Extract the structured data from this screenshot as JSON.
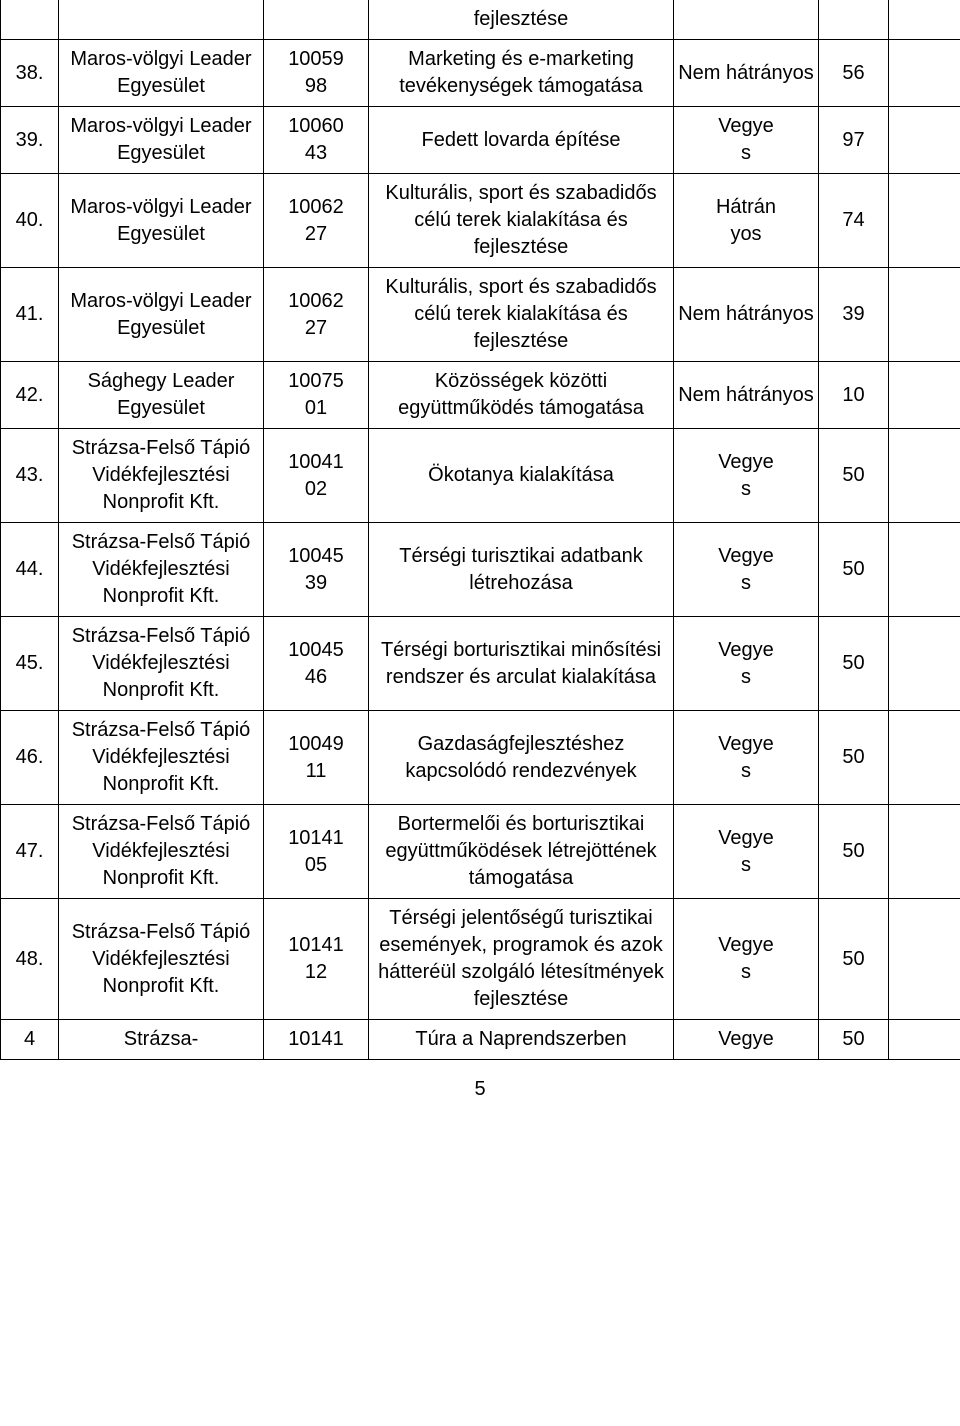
{
  "rows": [
    {
      "num": "",
      "org": "",
      "code": "",
      "desc": "fejlesztése",
      "type": "",
      "score": "",
      "tail": ""
    },
    {
      "num": "38.",
      "org": "Maros-völgyi Leader Egyesület",
      "code": "10059\n98",
      "desc": "Marketing és e-marketing tevékenységek támogatása",
      "type": "Nem hátrányos",
      "score": "56",
      "tail": ""
    },
    {
      "num": "39.",
      "org": "Maros-völgyi Leader Egyesület",
      "code": "10060\n43",
      "desc": "Fedett lovarda építése",
      "type": "Vegye\ns",
      "score": "97",
      "tail": ""
    },
    {
      "num": "40.",
      "org": "Maros-völgyi Leader Egyesület",
      "code": "10062\n27",
      "desc": "Kulturális, sport és szabadidős célú terek kialakítása és fejlesztése",
      "type": "Hátrán\nyos",
      "score": "74",
      "tail": ""
    },
    {
      "num": "41.",
      "org": "Maros-völgyi Leader Egyesület",
      "code": "10062\n27",
      "desc": "Kulturális, sport és szabadidős célú terek kialakítása és fejlesztése",
      "type": "Nem hátrányos",
      "score": "39",
      "tail": ""
    },
    {
      "num": "42.",
      "org": "Sághegy Leader Egyesület",
      "code": "10075\n01",
      "desc": "Közösségek közötti együttműködés támogatása",
      "type": "Nem hátrányos",
      "score": "10",
      "tail": ""
    },
    {
      "num": "43.",
      "org": "Strázsa-Felső Tápió Vidékfejlesztési Nonprofit Kft.",
      "code": "10041\n02",
      "desc": "Ökotanya kialakítása",
      "type": "Vegye\ns",
      "score": "50",
      "tail": ""
    },
    {
      "num": "44.",
      "org": "Strázsa-Felső Tápió Vidékfejlesztési Nonprofit Kft.",
      "code": "10045\n39",
      "desc": "Térségi turisztikai adatbank létrehozása",
      "type": "Vegye\ns",
      "score": "50",
      "tail": ""
    },
    {
      "num": "45.",
      "org": "Strázsa-Felső Tápió Vidékfejlesztési Nonprofit Kft.",
      "code": "10045\n46",
      "desc": "Térségi borturisztikai minősítési rendszer és arculat kialakítása",
      "type": "Vegye\ns",
      "score": "50",
      "tail": ""
    },
    {
      "num": "46.",
      "org": "Strázsa-Felső Tápió Vidékfejlesztési Nonprofit Kft.",
      "code": "10049\n11",
      "desc": "Gazdaságfejlesztéshez kapcsolódó rendezvények",
      "type": "Vegye\ns",
      "score": "50",
      "tail": ""
    },
    {
      "num": "47.",
      "org": "Strázsa-Felső Tápió Vidékfejlesztési Nonprofit Kft.",
      "code": "10141\n05",
      "desc": "Bortermelői és borturisztikai együttműködések létrejöttének támogatása",
      "type": "Vegye\ns",
      "score": "50",
      "tail": ""
    },
    {
      "num": "48.",
      "org": "Strázsa-Felső Tápió Vidékfejlesztési Nonprofit Kft.",
      "code": "10141\n12",
      "desc": "Térségi jelentőségű turisztikai események, programok és azok hátteréül szolgáló létesítmények fejlesztése",
      "type": "Vegye\ns",
      "score": "50",
      "tail": ""
    },
    {
      "num": "4",
      "org": "Strázsa-",
      "code": "10141",
      "desc": "Túra a Naprendszerben",
      "type": "Vegye",
      "score": "50",
      "tail": ""
    }
  ],
  "page_number": "5"
}
